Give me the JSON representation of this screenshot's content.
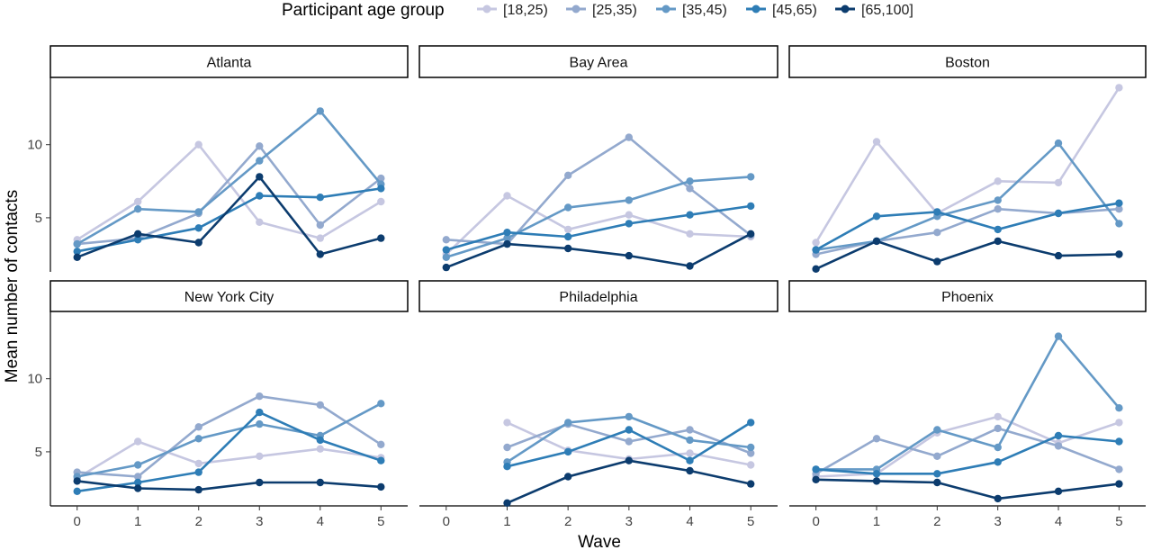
{
  "chart_data": {
    "type": "line",
    "legend": {
      "title": "Participant age group",
      "position": "top",
      "entries": [
        "[18,25)",
        "[25,35)",
        "[35,45)",
        "[45,65)",
        "[65,100]"
      ]
    },
    "colors": [
      "#c6c7e1",
      "#93a9ce",
      "#6499c6",
      "#2e7db6",
      "#0c3c6e"
    ],
    "xlabel": "Wave",
    "ylabel": "Mean number of contacts",
    "x": [
      0,
      1,
      2,
      3,
      4,
      5
    ],
    "yticks": [
      5,
      10
    ],
    "ylim": [
      1.3,
      14.6
    ],
    "grid": false,
    "facets": [
      {
        "title": "Atlanta",
        "series": [
          {
            "name": "[18,25)",
            "values": [
              3.5,
              6.1,
              10.0,
              4.7,
              3.6,
              6.1
            ]
          },
          {
            "name": "[25,35)",
            "values": [
              3.2,
              3.6,
              5.3,
              9.9,
              4.5,
              7.7
            ]
          },
          {
            "name": "[35,45)",
            "values": [
              3.2,
              5.6,
              5.4,
              8.9,
              12.3,
              7.3
            ]
          },
          {
            "name": "[45,65)",
            "values": [
              2.7,
              3.5,
              4.3,
              6.5,
              6.4,
              7.0
            ]
          },
          {
            "name": "[65,100]",
            "values": [
              2.3,
              3.9,
              3.3,
              7.8,
              2.5,
              3.6
            ]
          }
        ]
      },
      {
        "title": "Bay Area",
        "series": [
          {
            "name": "[18,25)",
            "values": [
              2.5,
              6.5,
              4.2,
              5.2,
              3.9,
              3.7
            ]
          },
          {
            "name": "[25,35)",
            "values": [
              3.5,
              3.2,
              7.9,
              10.5,
              7.0,
              3.8
            ]
          },
          {
            "name": "[35,45)",
            "values": [
              2.3,
              3.6,
              5.7,
              6.2,
              7.5,
              7.8
            ]
          },
          {
            "name": "[45,65)",
            "values": [
              2.8,
              4.0,
              3.7,
              4.6,
              5.2,
              5.8
            ]
          },
          {
            "name": "[65,100]",
            "values": [
              1.6,
              3.2,
              2.9,
              2.4,
              1.7,
              3.9
            ]
          }
        ]
      },
      {
        "title": "Boston",
        "series": [
          {
            "name": "[18,25)",
            "values": [
              3.3,
              10.2,
              5.3,
              7.5,
              7.4,
              13.9
            ]
          },
          {
            "name": "[25,35)",
            "values": [
              2.5,
              3.4,
              4.0,
              5.6,
              5.3,
              5.6
            ]
          },
          {
            "name": "[35,45)",
            "values": [
              2.8,
              3.4,
              5.1,
              6.2,
              10.1,
              4.6
            ]
          },
          {
            "name": "[45,65)",
            "values": [
              2.8,
              5.1,
              5.4,
              4.2,
              5.3,
              6.0
            ]
          },
          {
            "name": "[65,100]",
            "values": [
              1.5,
              3.4,
              2.0,
              3.4,
              2.4,
              2.5
            ]
          }
        ]
      },
      {
        "title": "New York City",
        "series": [
          {
            "name": "[18,25)",
            "values": [
              3.2,
              5.7,
              4.2,
              4.7,
              5.2,
              4.6
            ]
          },
          {
            "name": "[25,35)",
            "values": [
              3.6,
              3.3,
              6.7,
              8.8,
              8.2,
              5.5
            ]
          },
          {
            "name": "[35,45)",
            "values": [
              3.3,
              4.1,
              5.9,
              6.9,
              6.1,
              8.3
            ]
          },
          {
            "name": "[45,65)",
            "values": [
              2.3,
              2.9,
              3.6,
              7.7,
              5.8,
              4.4
            ]
          },
          {
            "name": "[65,100]",
            "values": [
              3.0,
              2.5,
              2.4,
              2.9,
              2.9,
              2.6
            ]
          }
        ]
      },
      {
        "title": "Philadelphia",
        "series": [
          {
            "name": "[18,25)",
            "values": [
              null,
              7.0,
              5.1,
              4.5,
              4.9,
              4.1
            ]
          },
          {
            "name": "[25,35)",
            "values": [
              null,
              5.3,
              6.9,
              5.7,
              6.5,
              4.9
            ]
          },
          {
            "name": "[35,45)",
            "values": [
              null,
              4.3,
              7.0,
              7.4,
              5.8,
              5.3
            ]
          },
          {
            "name": "[45,65)",
            "values": [
              null,
              4.0,
              5.0,
              6.5,
              4.4,
              7.0
            ]
          },
          {
            "name": "[65,100]",
            "values": [
              null,
              1.5,
              3.3,
              4.4,
              3.7,
              2.8
            ]
          }
        ]
      },
      {
        "title": "Phoenix",
        "series": [
          {
            "name": "[18,25)",
            "values": [
              3.3,
              3.5,
              6.3,
              7.4,
              5.6,
              7.0
            ]
          },
          {
            "name": "[25,35)",
            "values": [
              3.5,
              5.9,
              4.7,
              6.6,
              5.4,
              3.8
            ]
          },
          {
            "name": "[35,45)",
            "values": [
              3.8,
              3.8,
              6.5,
              5.3,
              12.9,
              8.0
            ]
          },
          {
            "name": "[45,65)",
            "values": [
              3.8,
              3.5,
              3.5,
              4.3,
              6.1,
              5.7
            ]
          },
          {
            "name": "[65,100]",
            "values": [
              3.1,
              3.0,
              2.9,
              1.8,
              2.3,
              2.8
            ]
          }
        ]
      }
    ]
  }
}
